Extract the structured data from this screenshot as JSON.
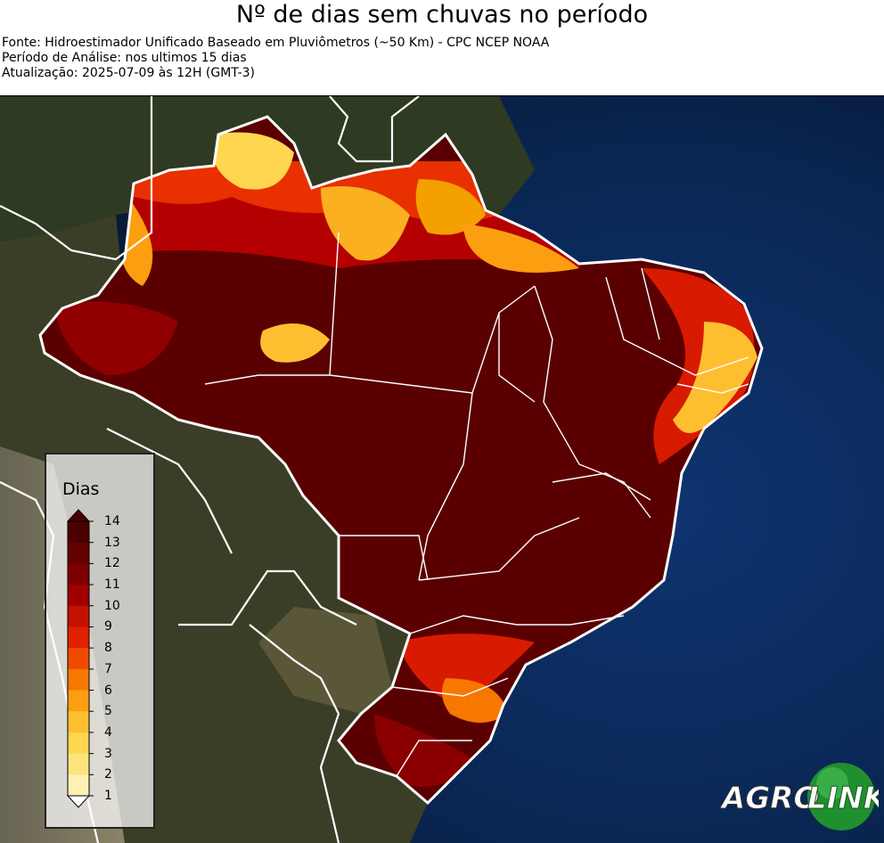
{
  "header": {
    "title": "Nº de dias sem chuvas no período",
    "source": "Fonte: Hidroestimador Unificado Baseado em Pluviômetros (~50 Km) - CPC NCEP NOAA",
    "period": "Período de Análise: nos ultimos 15 dias",
    "updated": "Atualização: 2025-07-09 às 12H (GMT-3)"
  },
  "legend": {
    "title": "Dias",
    "levels": [
      {
        "value": "14",
        "color": "#4a0000"
      },
      {
        "value": "13",
        "color": "#640000"
      },
      {
        "value": "12",
        "color": "#7d0000"
      },
      {
        "value": "11",
        "color": "#a00000"
      },
      {
        "value": "10",
        "color": "#c41200"
      },
      {
        "value": "9",
        "color": "#e02000"
      },
      {
        "value": "8",
        "color": "#f04a00"
      },
      {
        "value": "7",
        "color": "#f67800"
      },
      {
        "value": "6",
        "color": "#fb9e10"
      },
      {
        "value": "5",
        "color": "#fdbf30"
      },
      {
        "value": "4",
        "color": "#fed650"
      },
      {
        "value": "3",
        "color": "#fee47c"
      },
      {
        "value": "2",
        "color": "#fff1b4"
      },
      {
        "value": "1",
        "color": "#ffffff"
      }
    ]
  },
  "logo": {
    "text_left": "AGRO",
    "text_right": "LINK",
    "color": "#1f8f2f"
  },
  "colors": {
    "ocean": "#0b2a5a",
    "land": "#2d3a24",
    "border": "#ffffff"
  }
}
